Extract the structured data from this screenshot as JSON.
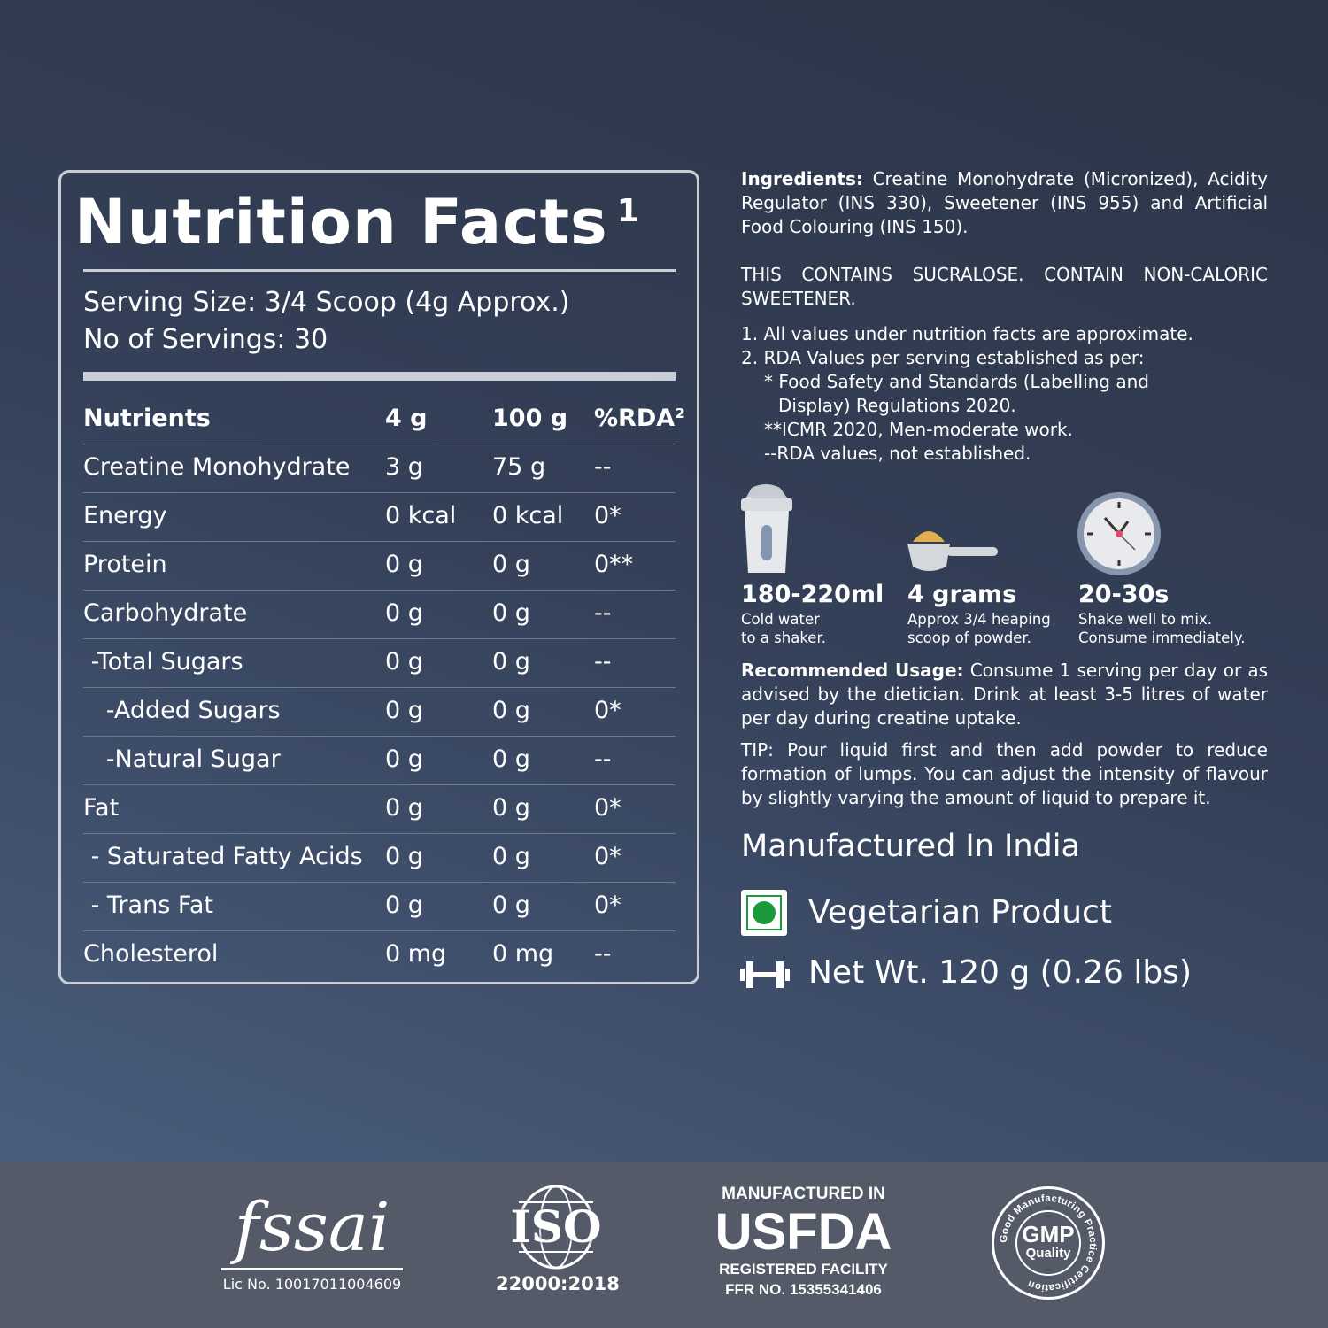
{
  "nutrition": {
    "title": "Nutrition Facts",
    "title_sup": "1",
    "serving_size": "Serving Size: 3/4 Scoop (4g Approx.)",
    "servings": "No of Servings: 30",
    "headers": [
      "Nutrients",
      "4 g",
      "100 g",
      "%RDA²"
    ],
    "rows": [
      [
        "Creatine Monohydrate",
        "3 g",
        "75 g",
        "--"
      ],
      [
        "Energy",
        "0 kcal",
        "0 kcal",
        "0*"
      ],
      [
        "Protein",
        "0 g",
        "0 g",
        "0**"
      ],
      [
        "Carbohydrate",
        "0 g",
        "0 g",
        "--"
      ],
      [
        " -Total Sugars",
        "0 g",
        "0 g",
        "--"
      ],
      [
        "   -Added Sugars",
        "0 g",
        "0 g",
        "0*"
      ],
      [
        "   -Natural Sugar",
        "0 g",
        "0 g",
        "--"
      ],
      [
        "Fat",
        "0 g",
        "0 g",
        "0*"
      ],
      [
        " - Saturated Fatty Acids",
        "0 g",
        "0 g",
        "0*"
      ],
      [
        " - Trans Fat",
        "0 g",
        "0 g",
        "0*"
      ],
      [
        "Cholesterol",
        "0 mg",
        "0 mg",
        "--"
      ]
    ]
  },
  "info": {
    "ingredients_label": "Ingredients:",
    "ingredients": "Creatine Monohydrate (Micronized), Acidity Regulator (INS 330), Sweetener (INS 955) and Artificial Food Colouring (INS 150).",
    "warning": "THIS CONTAINS SUCRALOSE. CONTAIN NON-CALORIC SWEETENER.",
    "notes": [
      "1.  All values under nutrition facts  are approximate.",
      "2.  RDA Values per serving established as per:",
      "* Food Safety and Standards (Labelling and",
      "Display) Regulations 2020.",
      "**ICMR 2020, Men-moderate work.",
      "--RDA values, not established."
    ],
    "steps": [
      {
        "icon": "shaker-icon",
        "title": "180-220ml",
        "line1": "Cold water",
        "line2": "to a shaker."
      },
      {
        "icon": "scoop-icon",
        "title": "4 grams",
        "line1": "Approx 3/4 heaping",
        "line2": "scoop of powder."
      },
      {
        "icon": "clock-icon",
        "title": "20-30s",
        "line1": "Shake well to mix.",
        "line2": "Consume immediately."
      }
    ],
    "usage_label": "Recommended Usage:",
    "usage": "Consume 1 serving per day or as advised by the dietician. Drink at least 3-5 litres of water per day during creatine uptake.",
    "tip": "TIP: Pour liquid first and then add powder to reduce formation of lumps. You can adjust the intensity of flavour by slightly varying the amount of liquid to prepare it.",
    "manufactured": "Manufactured In India",
    "veg": "Vegetarian Product",
    "net_wt": "Net Wt. 120 g (0.26 lbs)",
    "veg_color": "#1a9a3a"
  },
  "footer": {
    "fssai_logo": "fssai",
    "fssai_lic": "Lic No. 10017011004609",
    "iso_logo": "ISO",
    "iso_code": "22000:2018",
    "usfda_top": "MANUFACTURED IN",
    "usfda": "USFDA",
    "usfda_reg": "REGISTERED FACILITY",
    "usfda_ffr": "FFR NO. 15355341406",
    "gmp": "GMP",
    "gmp_quality": "Quality",
    "gmp_ring": "Good Manufacturing Practice Certification"
  }
}
